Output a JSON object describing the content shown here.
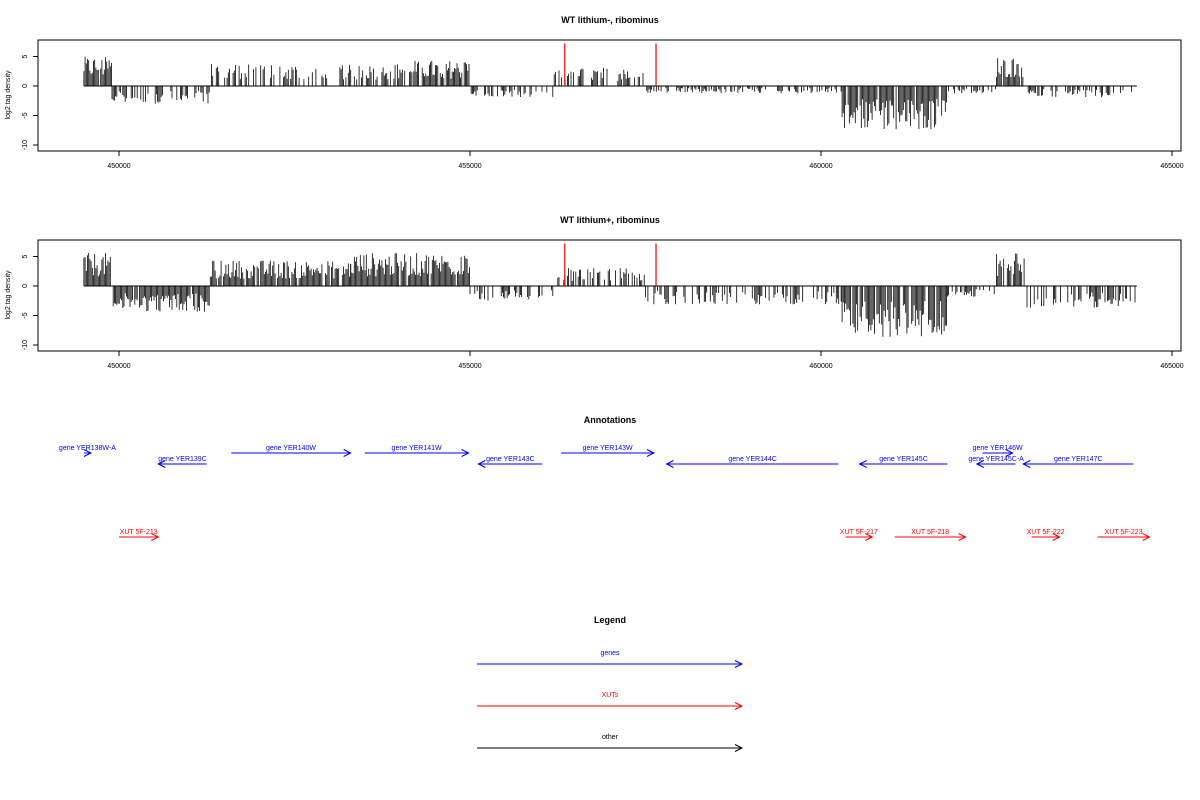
{
  "chart_data": [
    {
      "type": "bar",
      "title": "WT lithium-, ribominus",
      "ylabel": "log2 tag density",
      "xlim": [
        449500,
        464500
      ],
      "ylim": [
        -11,
        8
      ],
      "x_ticks": [
        450000,
        455000,
        460000,
        465000
      ],
      "y_ticks": [
        5,
        0,
        -5,
        -10
      ],
      "segments": [
        {
          "from": 449500,
          "to": 449900,
          "level": 4
        },
        {
          "from": 449900,
          "to": 451300,
          "level": -2.5
        },
        {
          "from": 451300,
          "to": 453300,
          "level": 3
        },
        {
          "from": 453300,
          "to": 454200,
          "level": 3
        },
        {
          "from": 454200,
          "to": 455000,
          "level": 3.5
        },
        {
          "from": 455000,
          "to": 456200,
          "level": -1.5
        },
        {
          "from": 456200,
          "to": 457500,
          "level": 2.5
        },
        {
          "from": 457500,
          "to": 460300,
          "level": -1
        },
        {
          "from": 460300,
          "to": 461800,
          "level": -6
        },
        {
          "from": 461800,
          "to": 462500,
          "level": -1
        },
        {
          "from": 462500,
          "to": 462900,
          "level": 4
        },
        {
          "from": 462900,
          "to": 464500,
          "level": -1.5
        }
      ],
      "highlights": [
        {
          "x": 456350,
          "y": 7.2
        },
        {
          "x": 457650,
          "y": 7.2
        }
      ],
      "highlight_color": "#ff0000",
      "bar_color": "#000000"
    },
    {
      "type": "bar",
      "title": "WT lithium+, ribominus",
      "ylabel": "log2 tag density",
      "xlim": [
        449500,
        464500
      ],
      "ylim": [
        -11,
        8
      ],
      "x_ticks": [
        450000,
        455000,
        460000,
        465000
      ],
      "y_ticks": [
        5,
        0,
        -5,
        -10
      ],
      "segments": [
        {
          "from": 449500,
          "to": 449900,
          "level": 4.5
        },
        {
          "from": 449900,
          "to": 451300,
          "level": -3.5
        },
        {
          "from": 451300,
          "to": 453300,
          "level": 3.5
        },
        {
          "from": 453300,
          "to": 455000,
          "level": 4.5
        },
        {
          "from": 455000,
          "to": 456200,
          "level": -2
        },
        {
          "from": 456200,
          "to": 457500,
          "level": 2.5
        },
        {
          "from": 457500,
          "to": 460300,
          "level": -2.5
        },
        {
          "from": 460300,
          "to": 461800,
          "level": -7
        },
        {
          "from": 461800,
          "to": 462500,
          "level": -1.5
        },
        {
          "from": 462500,
          "to": 462900,
          "level": 4.5
        },
        {
          "from": 462900,
          "to": 464500,
          "level": -3
        }
      ],
      "highlights": [
        {
          "x": 456350,
          "y": 7.2
        },
        {
          "x": 457650,
          "y": 7.2
        }
      ],
      "highlight_color": "#ff0000",
      "bar_color": "#000000"
    }
  ],
  "annotations": {
    "title": "Annotations",
    "genes": [
      {
        "label": "gene YER138W-A",
        "from": 449500,
        "to": 449600,
        "strand": "+"
      },
      {
        "label": "gene YER139C",
        "from": 451250,
        "to": 450560,
        "strand": "-"
      },
      {
        "label": "gene YER140W",
        "from": 451600,
        "to": 453300,
        "strand": "+"
      },
      {
        "label": "gene YER141W",
        "from": 453500,
        "to": 454980,
        "strand": "+"
      },
      {
        "label": "gene YER143C",
        "from": 456030,
        "to": 455120,
        "strand": "-"
      },
      {
        "label": "gene YER143W",
        "from": 456300,
        "to": 457620,
        "strand": "+"
      },
      {
        "label": "gene YER144C",
        "from": 460250,
        "to": 457800,
        "strand": "-"
      },
      {
        "label": "gene YER145C",
        "from": 461800,
        "to": 460550,
        "strand": "-"
      },
      {
        "label": "gene YER146W",
        "from": 462300,
        "to": 462730,
        "strand": "+"
      },
      {
        "label": "gene YER145C-A",
        "from": 462770,
        "to": 462220,
        "strand": "-"
      },
      {
        "label": "gene YER147C",
        "from": 464450,
        "to": 462880,
        "strand": "-"
      }
    ],
    "xuts": [
      {
        "label": "XUT 5F-213",
        "from": 450000,
        "to": 450560
      },
      {
        "label": "XUT 5F-217",
        "from": 460350,
        "to": 460730
      },
      {
        "label": "XUT 5F-218",
        "from": 461050,
        "to": 462060
      },
      {
        "label": "XUT 5F-222",
        "from": 463000,
        "to": 463400
      },
      {
        "label": "XUT 5F-223",
        "from": 463940,
        "to": 464680
      }
    ]
  },
  "legend": {
    "title": "Legend",
    "items": [
      {
        "label": "genes",
        "color": "#0000ff"
      },
      {
        "label": "XUTs",
        "color": "#ff0000"
      },
      {
        "label": "other",
        "color": "#000000"
      }
    ]
  },
  "colors": {
    "gene": "#0000ff",
    "xut": "#ff0000",
    "axis": "#000000"
  }
}
